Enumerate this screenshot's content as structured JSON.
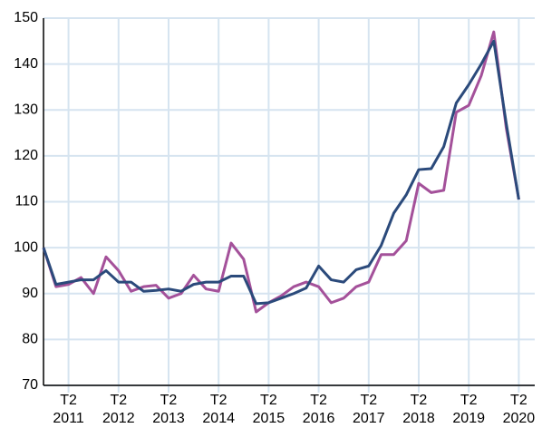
{
  "chart_data": {
    "type": "line",
    "categories": [
      null,
      null,
      "T2 2011",
      null,
      null,
      null,
      "T2 2012",
      null,
      null,
      null,
      "T2 2013",
      null,
      null,
      null,
      "T2 2014",
      null,
      null,
      null,
      "T2 2015",
      null,
      null,
      null,
      "T2 2016",
      null,
      null,
      null,
      "T2 2017",
      null,
      null,
      null,
      "T2 2018",
      null,
      null,
      null,
      "T2 2019",
      null,
      null,
      null,
      "T2 2020"
    ],
    "series": [
      {
        "color": "#a4519a",
        "values": [
          100,
          91.5,
          92,
          93.5,
          90,
          98,
          95,
          90.5,
          91.5,
          91.8,
          89,
          90,
          94,
          91,
          90.5,
          101,
          97.5,
          86,
          88,
          89.5,
          91.5,
          92.5,
          91.5,
          88,
          89,
          91.5,
          92.5,
          98.5,
          98.5,
          101.5,
          114,
          112,
          112.5,
          129.5,
          131,
          137.5,
          147,
          126,
          110.5
        ]
      },
      {
        "color": "#2b4a7b",
        "values": [
          100,
          92,
          92.5,
          93,
          93,
          95,
          92.5,
          92.5,
          90.5,
          90.7,
          91,
          90.5,
          92,
          92.5,
          92.5,
          93.8,
          93.8,
          87.8,
          88,
          89,
          90,
          91.2,
          96,
          93,
          92.5,
          95.2,
          96,
          100.5,
          107.5,
          111.5,
          117,
          117.2,
          122,
          131.5,
          135.5,
          140,
          145,
          127,
          110.5
        ]
      }
    ],
    "ylim": [
      70,
      150
    ],
    "yticks": [
      70,
      80,
      90,
      100,
      110,
      120,
      130,
      140,
      150
    ],
    "grid": true
  }
}
